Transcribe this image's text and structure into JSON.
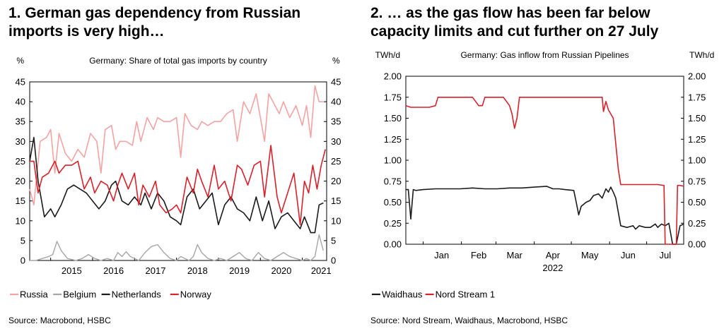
{
  "panels": [
    {
      "heading_line1": "1. German gas dependency from Russian",
      "heading_line2": "imports is very high…",
      "source": "Source: Macrobond, HSBC"
    },
    {
      "heading_line1": "2. … as the gas flow has been far below",
      "heading_line2": "capacity limits and cut further on 27 July",
      "source": "Source: Nord Stream, Waidhaus, Macrobond, HSBC"
    }
  ],
  "chart_data": [
    {
      "type": "line",
      "title": "Germany: Share of total gas imports by country",
      "ylabel_left": "%",
      "ylabel_right": "%",
      "ylim": [
        0,
        45
      ],
      "yticks": [
        0,
        5,
        10,
        15,
        20,
        25,
        30,
        35,
        40,
        45
      ],
      "xlim": [
        2014.5,
        2021.58
      ],
      "xticks": [
        "2015",
        "2016",
        "2017",
        "2018",
        "2019",
        "2020",
        "2021"
      ],
      "grid": false,
      "legend_position": "bottom",
      "colors": {
        "Russia": "#f4a3a3",
        "Belgium": "#a6a6a6",
        "Netherlands": "#1a1a1a",
        "Norway": "#d9212b"
      },
      "series": [
        {
          "name": "Russia",
          "x": [
            2014.5,
            2014.6,
            2014.75,
            2014.9,
            2015.0,
            2015.1,
            2015.2,
            2015.35,
            2015.5,
            2015.65,
            2015.8,
            2015.95,
            2016.1,
            2016.2,
            2016.3,
            2016.45,
            2016.55,
            2016.65,
            2016.8,
            2016.95,
            2017.05,
            2017.15,
            2017.3,
            2017.45,
            2017.55,
            2017.7,
            2017.85,
            2018.0,
            2018.1,
            2018.2,
            2018.35,
            2018.5,
            2018.6,
            2018.75,
            2018.9,
            2019.05,
            2019.2,
            2019.35,
            2019.45,
            2019.6,
            2019.75,
            2019.9,
            2020.0,
            2020.1,
            2020.2,
            2020.3,
            2020.45,
            2020.55,
            2020.7,
            2020.85,
            2021.0,
            2021.1,
            2021.2,
            2021.3,
            2021.4,
            2021.5
          ],
          "values": [
            18,
            14,
            30,
            31,
            33,
            22,
            32,
            27,
            25,
            28,
            26,
            32,
            30,
            22,
            33,
            34,
            28,
            30,
            30,
            29,
            35,
            30,
            36,
            33,
            36,
            35,
            35,
            36,
            26,
            37,
            34,
            33,
            35,
            34,
            35,
            35,
            37,
            38,
            30,
            40,
            37,
            42,
            36,
            30,
            42,
            40,
            37,
            40,
            36,
            39,
            34,
            39,
            31,
            44,
            40,
            40
          ]
        },
        {
          "name": "Belgium",
          "x": [
            2014.5,
            2014.65,
            2014.8,
            2014.95,
            2015.05,
            2015.15,
            2015.25,
            2015.4,
            2015.6,
            2015.75,
            2015.9,
            2016.05,
            2016.2,
            2016.35,
            2016.5,
            2016.6,
            2016.7,
            2016.8,
            2016.9,
            2017.0,
            2017.1,
            2017.25,
            2017.4,
            2017.55,
            2017.7,
            2017.85,
            2018.0,
            2018.1,
            2018.2,
            2018.3,
            2018.4,
            2018.5,
            2018.6,
            2018.75,
            2018.9,
            2019.05,
            2019.2,
            2019.35,
            2019.5,
            2019.65,
            2019.8,
            2019.95,
            2020.1,
            2020.25,
            2020.4,
            2020.55,
            2020.7,
            2020.85,
            2021.0,
            2021.1,
            2021.2,
            2021.3,
            2021.4,
            2021.5
          ],
          "values": [
            0,
            0,
            0.5,
            1,
            1.5,
            4.8,
            2.5,
            0.5,
            0,
            0.5,
            1.5,
            0.5,
            0,
            0.5,
            0,
            2,
            1,
            2.2,
            1,
            0.5,
            0,
            2,
            3.5,
            4,
            2,
            0.5,
            0,
            1,
            0.5,
            0,
            1,
            4,
            2,
            0.5,
            0,
            0.5,
            0,
            1,
            2,
            0.5,
            0,
            2,
            0.5,
            0,
            1,
            2,
            1,
            0.5,
            0,
            0.5,
            0,
            1,
            6.5,
            2.5
          ]
        },
        {
          "name": "Netherlands",
          "x": [
            2014.5,
            2014.6,
            2014.7,
            2014.85,
            2015.0,
            2015.1,
            2015.25,
            2015.4,
            2015.55,
            2015.7,
            2015.85,
            2016.0,
            2016.15,
            2016.3,
            2016.45,
            2016.55,
            2016.7,
            2016.85,
            2017.0,
            2017.15,
            2017.25,
            2017.4,
            2017.55,
            2017.7,
            2017.85,
            2018.0,
            2018.1,
            2018.25,
            2018.4,
            2018.55,
            2018.7,
            2018.85,
            2019.0,
            2019.15,
            2019.3,
            2019.45,
            2019.6,
            2019.75,
            2019.9,
            2020.05,
            2020.2,
            2020.35,
            2020.5,
            2020.65,
            2020.8,
            2020.95,
            2021.05,
            2021.2,
            2021.3,
            2021.4,
            2021.5
          ],
          "values": [
            25,
            31,
            20,
            11,
            13,
            11,
            14,
            18,
            19,
            18,
            17,
            15,
            13,
            15,
            19,
            20,
            15,
            14,
            16,
            14,
            17,
            13,
            17,
            15,
            11,
            10,
            9,
            16,
            18,
            13,
            15,
            17,
            9,
            14,
            16,
            13,
            12,
            10,
            16,
            10,
            15,
            8,
            11,
            12,
            10,
            8,
            11,
            7,
            7,
            14,
            14.5
          ]
        },
        {
          "name": "Norway",
          "x": [
            2014.5,
            2014.6,
            2014.7,
            2014.8,
            2014.95,
            2015.1,
            2015.2,
            2015.35,
            2015.5,
            2015.65,
            2015.8,
            2015.95,
            2016.05,
            2016.2,
            2016.35,
            2016.5,
            2016.6,
            2016.7,
            2016.85,
            2017.0,
            2017.1,
            2017.2,
            2017.35,
            2017.5,
            2017.6,
            2017.75,
            2017.9,
            2018.0,
            2018.1,
            2018.25,
            2018.4,
            2018.5,
            2018.6,
            2018.75,
            2018.9,
            2019.0,
            2019.15,
            2019.3,
            2019.45,
            2019.55,
            2019.7,
            2019.85,
            2020.0,
            2020.1,
            2020.25,
            2020.4,
            2020.5,
            2020.65,
            2020.8,
            2020.95,
            2021.05,
            2021.15,
            2021.25,
            2021.35,
            2021.45,
            2021.55
          ],
          "values": [
            25,
            25,
            17,
            21,
            22,
            25,
            22,
            24,
            24,
            25,
            18,
            21,
            17,
            20,
            19,
            15,
            19,
            22,
            18,
            22,
            14,
            19,
            16,
            20,
            14,
            12,
            13,
            14,
            12,
            21,
            17,
            23,
            20,
            16,
            24,
            18,
            20,
            15,
            24,
            23,
            19,
            24,
            25,
            16,
            29,
            16,
            12,
            17,
            22,
            9,
            20,
            17,
            24,
            18,
            24,
            28
          ]
        }
      ]
    },
    {
      "type": "line",
      "title": "Germany: Gas inflow from Russian Pipelines",
      "ylabel_left": "TWh/d",
      "ylabel_right": "TWh/d",
      "ylim": [
        0,
        2
      ],
      "yticks": [
        "0.00",
        "0.25",
        "0.50",
        "0.75",
        "1.00",
        "1.25",
        "1.50",
        "1.75",
        "2.00"
      ],
      "xlim": [
        -14,
        211
      ],
      "month_labels": [
        {
          "label": "Jan",
          "x": 15
        },
        {
          "label": "Feb",
          "x": 45
        },
        {
          "label": "Mar",
          "x": 74
        },
        {
          "label": "Apr",
          "x": 105
        },
        {
          "label": "May",
          "x": 135
        },
        {
          "label": "Jun",
          "x": 166
        },
        {
          "label": "Jul",
          "x": 196
        }
      ],
      "month_starts": [
        0,
        31,
        59,
        90,
        120,
        151,
        181
      ],
      "year_label": "2022",
      "grid": false,
      "legend_position": "bottom",
      "colors": {
        "Waidhaus": "#1a1a1a",
        "Nord Stream 1": "#d9212b"
      },
      "series": [
        {
          "name": "Waidhaus",
          "x": [
            -14,
            -12,
            -10,
            -8,
            -6,
            0,
            10,
            20,
            30,
            40,
            50,
            60,
            70,
            80,
            90,
            100,
            105,
            110,
            115,
            122,
            124,
            126,
            128,
            132,
            135,
            138,
            142,
            145,
            148,
            150,
            152,
            154,
            156,
            160,
            165,
            170,
            172,
            175,
            180,
            184,
            186,
            188,
            190,
            193,
            196,
            199,
            202,
            205,
            208,
            211
          ],
          "values": [
            0.65,
            0.65,
            0.3,
            0.65,
            0.64,
            0.65,
            0.66,
            0.66,
            0.66,
            0.67,
            0.66,
            0.66,
            0.67,
            0.67,
            0.68,
            0.69,
            0.66,
            0.66,
            0.65,
            0.64,
            0.5,
            0.35,
            0.45,
            0.5,
            0.52,
            0.58,
            0.6,
            0.55,
            0.66,
            0.62,
            0.68,
            0.62,
            0.55,
            0.22,
            0.2,
            0.22,
            0.18,
            0.22,
            0.2,
            0.2,
            0.22,
            0.24,
            0.2,
            0.24,
            0.22,
            0.25,
            0.0,
            0.0,
            0.22,
            0.24
          ]
        },
        {
          "name": "Nord Stream 1",
          "x": [
            -14,
            -10,
            -5,
            0,
            5,
            10,
            12,
            20,
            25,
            30,
            40,
            45,
            48,
            50,
            55,
            60,
            65,
            70,
            72,
            74,
            76,
            78,
            80,
            90,
            100,
            110,
            120,
            130,
            140,
            145,
            146,
            148,
            150,
            152,
            154,
            156,
            158,
            160,
            162,
            164,
            166,
            168,
            170,
            180,
            190,
            195,
            196,
            199,
            202,
            205,
            206,
            208,
            211
          ],
          "values": [
            1.65,
            1.63,
            1.63,
            1.63,
            1.63,
            1.65,
            1.75,
            1.75,
            1.75,
            1.75,
            1.75,
            1.65,
            1.65,
            1.75,
            1.75,
            1.75,
            1.75,
            1.65,
            1.55,
            1.38,
            1.5,
            1.75,
            1.75,
            1.75,
            1.75,
            1.75,
            1.75,
            1.75,
            1.75,
            1.75,
            1.58,
            1.7,
            1.6,
            1.55,
            1.5,
            1.2,
            0.9,
            0.71,
            0.71,
            0.71,
            0.71,
            0.71,
            0.71,
            0.71,
            0.71,
            0.7,
            0.0,
            0.0,
            0.0,
            0.0,
            0.7,
            0.7,
            0.69
          ]
        }
      ]
    }
  ]
}
